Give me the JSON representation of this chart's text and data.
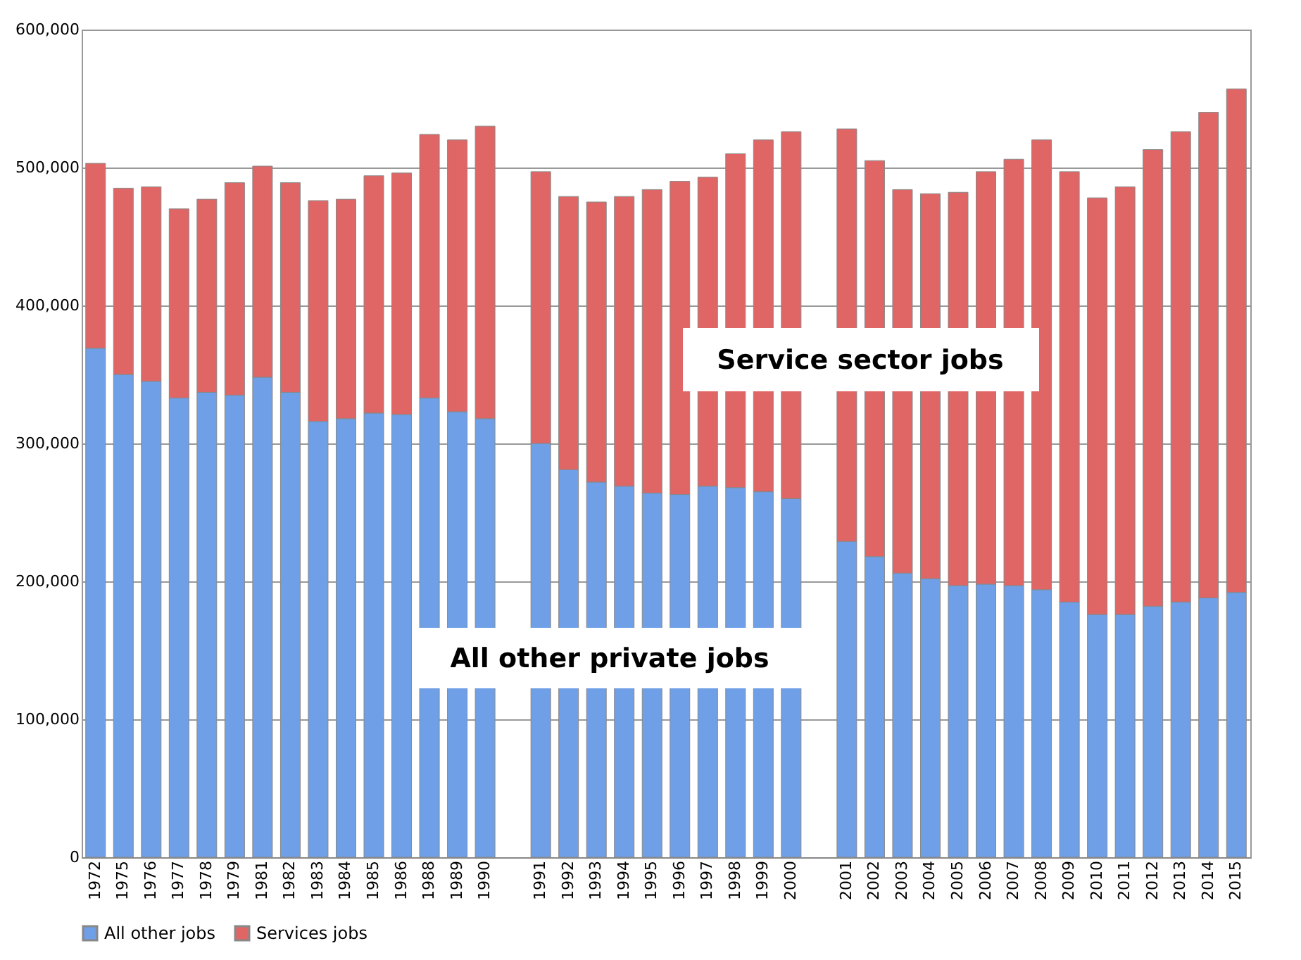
{
  "chart_data": {
    "type": "bar",
    "stacked": true,
    "categories": [
      "1972",
      "1975",
      "1976",
      "1977",
      "1978",
      "1979",
      "1981",
      "1982",
      "1983",
      "1984",
      "1985",
      "1986",
      "1988",
      "1989",
      "1990",
      null,
      "1991",
      "1992",
      "1993",
      "1994",
      "1995",
      "1996",
      "1997",
      "1998",
      "1999",
      "2000",
      null,
      "2001",
      "2002",
      "2003",
      "2004",
      "2005",
      "2006",
      "2007",
      "2008",
      "2009",
      "2010",
      "2011",
      "2012",
      "2013",
      "2014",
      "2015"
    ],
    "series": [
      {
        "name": "All other jobs",
        "color": "#6f9fe6",
        "values": [
          369000,
          350000,
          345000,
          333000,
          337000,
          335000,
          348000,
          337000,
          316000,
          318000,
          322000,
          321000,
          333000,
          323000,
          318000,
          null,
          300000,
          281000,
          272000,
          269000,
          264000,
          263000,
          269000,
          268000,
          265000,
          260000,
          null,
          229000,
          218000,
          206000,
          202000,
          197000,
          198000,
          197000,
          194000,
          185000,
          176000,
          176000,
          182000,
          185000,
          188000,
          192000
        ]
      },
      {
        "name": "Services jobs",
        "color": "#e06666",
        "values": [
          134000,
          135000,
          141000,
          137000,
          140000,
          154000,
          153000,
          152000,
          160000,
          159000,
          172000,
          175000,
          191000,
          197000,
          212000,
          null,
          197000,
          198000,
          203000,
          210000,
          220000,
          227000,
          224000,
          242000,
          255000,
          266000,
          null,
          299000,
          287000,
          278000,
          279000,
          285000,
          299000,
          309000,
          326000,
          312000,
          302000,
          310000,
          331000,
          341000,
          352000,
          365000
        ]
      }
    ],
    "ylim": [
      0,
      600000
    ],
    "yticks": [
      {
        "value": 0,
        "label": "0"
      },
      {
        "value": 100000,
        "label": "100,000"
      },
      {
        "value": 200000,
        "label": "200,000"
      },
      {
        "value": 300000,
        "label": "300,000"
      },
      {
        "value": 400000,
        "label": "400,000"
      },
      {
        "value": 500000,
        "label": "500,000"
      },
      {
        "value": 600000,
        "label": "600,000"
      }
    ],
    "grid": "y",
    "legend": "bottom",
    "annotations": [
      "Service sector jobs",
      "All other private jobs"
    ]
  }
}
